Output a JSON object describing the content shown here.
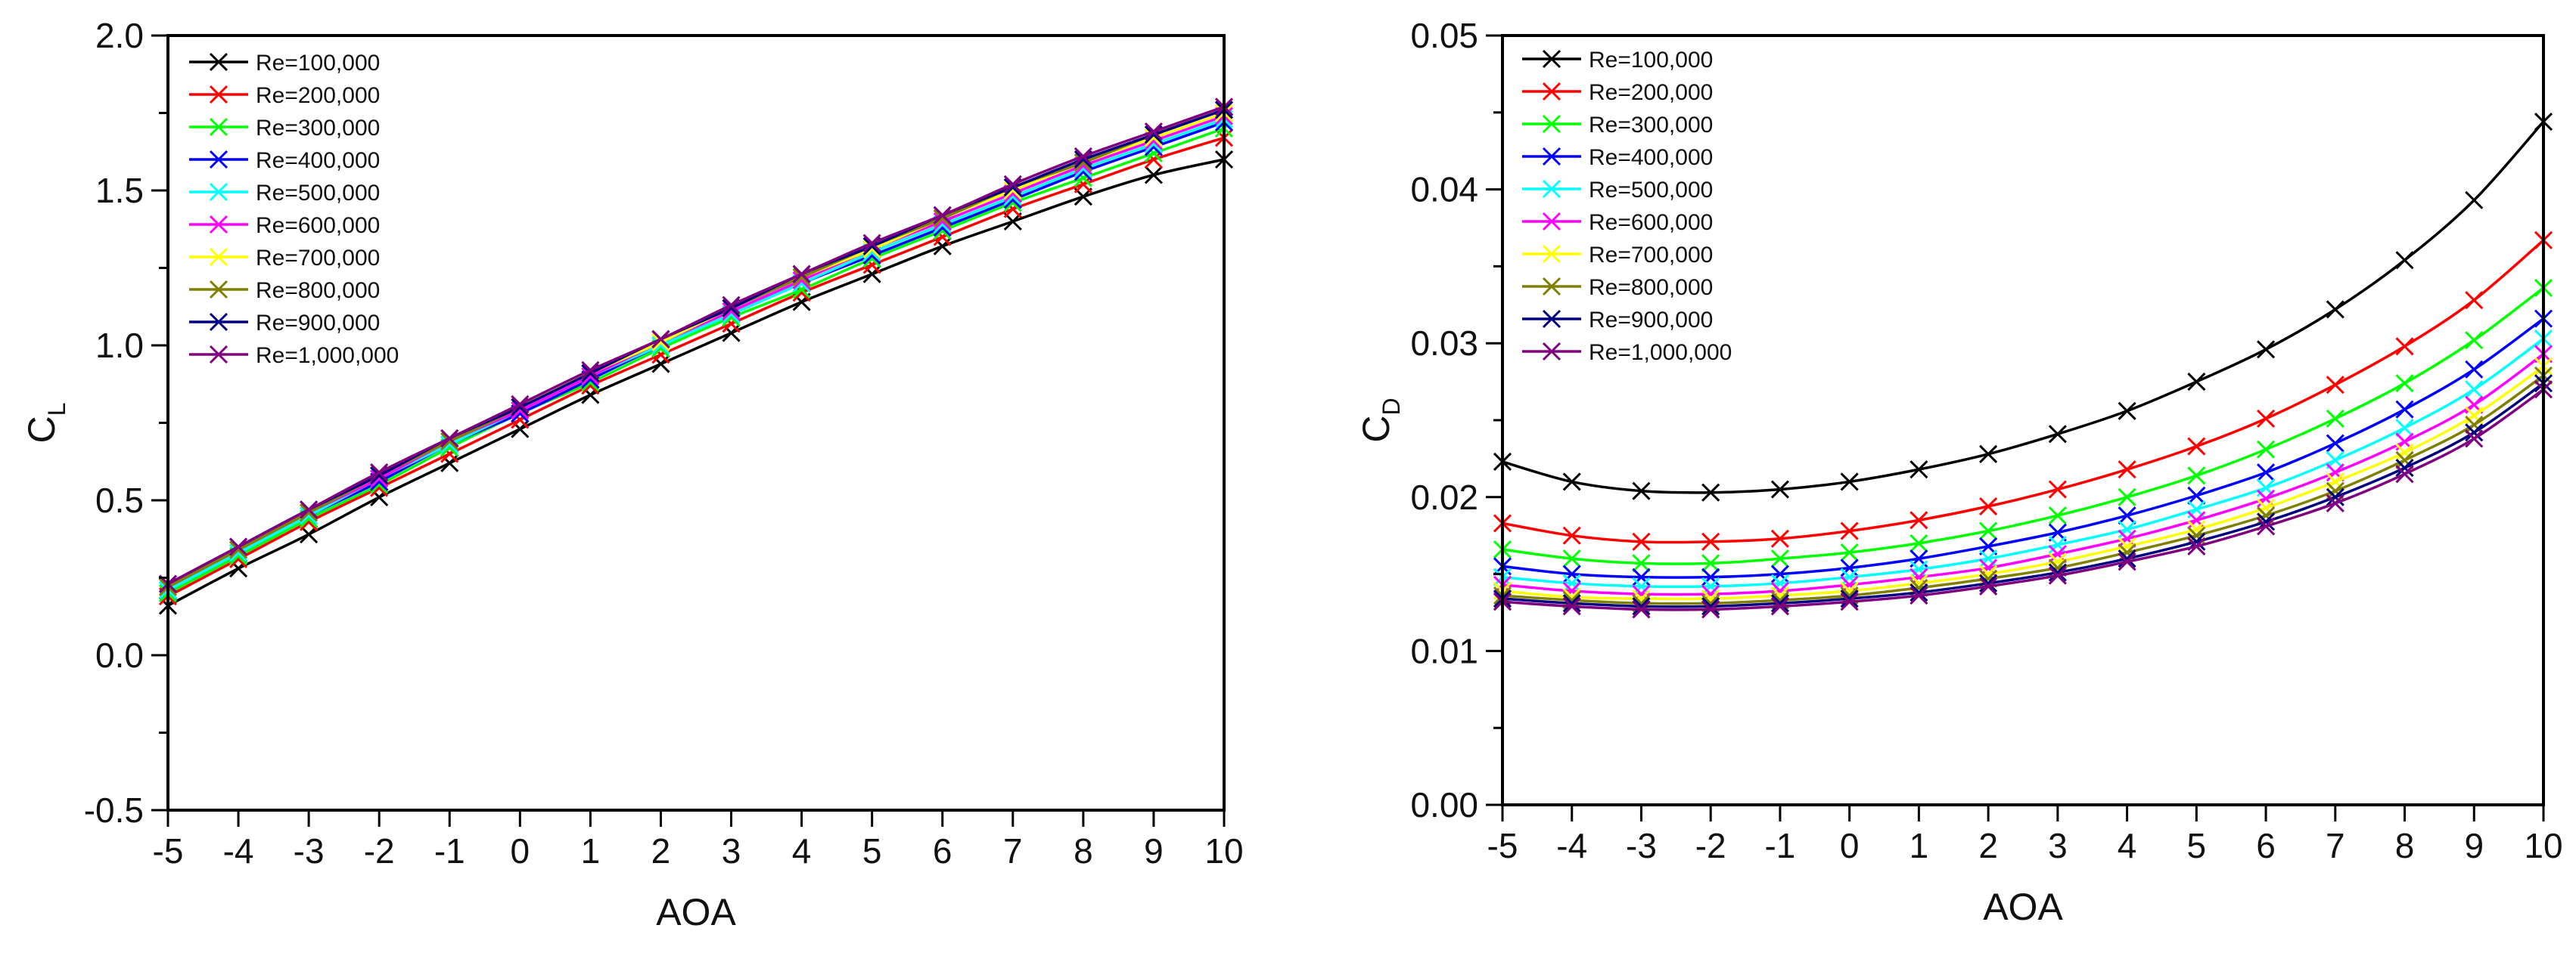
{
  "chart_data": [
    {
      "type": "line",
      "title": "",
      "xlabel": "AOA",
      "ylabel": "C",
      "ylabel_sub": "L",
      "xlim": [
        -5,
        10
      ],
      "ylim": [
        -0.5,
        2.0
      ],
      "x_ticks": [
        -5,
        -4,
        -3,
        -2,
        -1,
        0,
        1,
        2,
        3,
        4,
        5,
        6,
        7,
        8,
        9,
        10
      ],
      "x_tick_labels": [
        "-5",
        "-4",
        "-3",
        "-2",
        "-1",
        "0",
        "1",
        "2",
        "3",
        "4",
        "5",
        "6",
        "7",
        "8",
        "9",
        "10"
      ],
      "y_ticks": [
        -0.5,
        0.0,
        0.5,
        1.0,
        1.5,
        2.0
      ],
      "y_tick_labels": [
        "-0.5",
        "0.0",
        "0.5",
        "1.0",
        "1.5",
        "2.0"
      ],
      "legend_position": "top-left",
      "marker": "x",
      "x": [
        -5,
        -4,
        -3,
        -2,
        -1,
        0,
        1,
        2,
        3,
        4,
        5,
        6,
        7,
        8,
        9,
        10
      ],
      "series": [
        {
          "name": "Re=100,000",
          "color": "#000000",
          "values": [
            0.16,
            0.28,
            0.39,
            0.51,
            0.62,
            0.73,
            0.84,
            0.94,
            1.04,
            1.14,
            1.23,
            1.32,
            1.4,
            1.48,
            1.55,
            1.6
          ]
        },
        {
          "name": "Re=200,000",
          "color": "#ff0000",
          "values": [
            0.19,
            0.31,
            0.43,
            0.54,
            0.65,
            0.76,
            0.87,
            0.97,
            1.07,
            1.17,
            1.26,
            1.35,
            1.44,
            1.52,
            1.6,
            1.67
          ]
        },
        {
          "name": "Re=300,000",
          "color": "#00ff00",
          "values": [
            0.2,
            0.32,
            0.44,
            0.55,
            0.67,
            0.78,
            0.88,
            0.99,
            1.09,
            1.18,
            1.28,
            1.37,
            1.46,
            1.54,
            1.62,
            1.7
          ]
        },
        {
          "name": "Re=400,000",
          "color": "#0000ff",
          "values": [
            0.21,
            0.33,
            0.45,
            0.56,
            0.68,
            0.78,
            0.89,
            1.0,
            1.1,
            1.2,
            1.29,
            1.38,
            1.47,
            1.56,
            1.64,
            1.72
          ]
        },
        {
          "name": "Re=500,000",
          "color": "#00ffff",
          "values": [
            0.21,
            0.33,
            0.45,
            0.57,
            0.68,
            0.79,
            0.9,
            1.0,
            1.1,
            1.2,
            1.3,
            1.39,
            1.48,
            1.57,
            1.65,
            1.73
          ]
        },
        {
          "name": "Re=600,000",
          "color": "#ff00ff",
          "values": [
            0.22,
            0.34,
            0.46,
            0.57,
            0.69,
            0.79,
            0.9,
            1.01,
            1.11,
            1.21,
            1.31,
            1.4,
            1.49,
            1.58,
            1.66,
            1.74
          ]
        },
        {
          "name": "Re=700,000",
          "color": "#ffff00",
          "values": [
            0.22,
            0.34,
            0.46,
            0.58,
            0.69,
            0.8,
            0.91,
            1.01,
            1.12,
            1.22,
            1.31,
            1.41,
            1.5,
            1.59,
            1.67,
            1.75
          ]
        },
        {
          "name": "Re=800,000",
          "color": "#808000",
          "values": [
            0.22,
            0.34,
            0.46,
            0.58,
            0.69,
            0.8,
            0.91,
            1.02,
            1.12,
            1.22,
            1.32,
            1.41,
            1.51,
            1.59,
            1.68,
            1.76
          ]
        },
        {
          "name": "Re=900,000",
          "color": "#000080",
          "values": [
            0.23,
            0.35,
            0.47,
            0.58,
            0.7,
            0.8,
            0.91,
            1.02,
            1.12,
            1.23,
            1.32,
            1.42,
            1.51,
            1.6,
            1.68,
            1.76
          ]
        },
        {
          "name": "Re=1,000,000",
          "color": "#800080",
          "values": [
            0.23,
            0.35,
            0.47,
            0.59,
            0.7,
            0.81,
            0.92,
            1.02,
            1.13,
            1.23,
            1.33,
            1.42,
            1.52,
            1.61,
            1.69,
            1.77
          ]
        }
      ]
    },
    {
      "type": "line",
      "title": "",
      "xlabel": "AOA",
      "ylabel": "C",
      "ylabel_sub": "D",
      "xlim": [
        -5,
        10
      ],
      "ylim": [
        0.0,
        0.05
      ],
      "x_ticks": [
        -5,
        -4,
        -3,
        -2,
        -1,
        0,
        1,
        2,
        3,
        4,
        5,
        6,
        7,
        8,
        9,
        10
      ],
      "x_tick_labels": [
        "-5",
        "-4",
        "-3",
        "-2",
        "-1",
        "0",
        "1",
        "2",
        "3",
        "4",
        "5",
        "6",
        "7",
        "8",
        "9",
        "10"
      ],
      "y_ticks": [
        0.0,
        0.01,
        0.02,
        0.03,
        0.04,
        0.05
      ],
      "y_tick_labels": [
        "0.00",
        "0.01",
        "0.02",
        "0.03",
        "0.04",
        "0.05"
      ],
      "legend_position": "top-left",
      "marker": "x",
      "x": [
        -5,
        -4,
        -3,
        -2,
        -1,
        0,
        1,
        2,
        3,
        4,
        5,
        6,
        7,
        8,
        9,
        10
      ],
      "series": [
        {
          "name": "Re=100,000",
          "color": "#000000",
          "values": [
            0.0223,
            0.021,
            0.0204,
            0.0203,
            0.0205,
            0.021,
            0.0218,
            0.0228,
            0.0241,
            0.0256,
            0.0275,
            0.0296,
            0.0322,
            0.0354,
            0.0393,
            0.0444
          ]
        },
        {
          "name": "Re=200,000",
          "color": "#ff0000",
          "values": [
            0.0183,
            0.0175,
            0.0171,
            0.0171,
            0.0173,
            0.0178,
            0.0185,
            0.0194,
            0.0205,
            0.0218,
            0.0233,
            0.0251,
            0.0273,
            0.0298,
            0.0328,
            0.0367
          ]
        },
        {
          "name": "Re=300,000",
          "color": "#00ff00",
          "values": [
            0.0166,
            0.016,
            0.0157,
            0.0157,
            0.016,
            0.0164,
            0.017,
            0.0178,
            0.0188,
            0.02,
            0.0214,
            0.0231,
            0.0251,
            0.0274,
            0.0302,
            0.0336
          ]
        },
        {
          "name": "Re=400,000",
          "color": "#0000ff",
          "values": [
            0.0155,
            0.015,
            0.0148,
            0.0148,
            0.015,
            0.0154,
            0.016,
            0.0168,
            0.0177,
            0.0188,
            0.0201,
            0.0216,
            0.0235,
            0.0257,
            0.0283,
            0.0316
          ]
        },
        {
          "name": "Re=500,000",
          "color": "#00ffff",
          "values": [
            0.0148,
            0.0144,
            0.0142,
            0.0142,
            0.0144,
            0.0148,
            0.0153,
            0.016,
            0.0169,
            0.0179,
            0.0192,
            0.0206,
            0.0224,
            0.0245,
            0.027,
            0.0303
          ]
        },
        {
          "name": "Re=600,000",
          "color": "#ff00ff",
          "values": [
            0.0143,
            0.0139,
            0.0137,
            0.0137,
            0.0139,
            0.0143,
            0.0148,
            0.0154,
            0.0163,
            0.0173,
            0.0185,
            0.0199,
            0.0216,
            0.0236,
            0.026,
            0.0293
          ]
        },
        {
          "name": "Re=700,000",
          "color": "#ffff00",
          "values": [
            0.0139,
            0.0135,
            0.0134,
            0.0134,
            0.0136,
            0.0139,
            0.0144,
            0.015,
            0.0158,
            0.0168,
            0.0179,
            0.0193,
            0.021,
            0.0229,
            0.0253,
            0.0285
          ]
        },
        {
          "name": "Re=800,000",
          "color": "#808000",
          "values": [
            0.0136,
            0.0133,
            0.0131,
            0.0131,
            0.0133,
            0.0136,
            0.0141,
            0.0147,
            0.0154,
            0.0164,
            0.0175,
            0.0188,
            0.0204,
            0.0224,
            0.0247,
            0.0279
          ]
        },
        {
          "name": "Re=900,000",
          "color": "#000080",
          "values": [
            0.0134,
            0.0131,
            0.0129,
            0.0129,
            0.0131,
            0.0134,
            0.0138,
            0.0144,
            0.0151,
            0.016,
            0.0171,
            0.0184,
            0.02,
            0.0219,
            0.0242,
            0.0274
          ]
        },
        {
          "name": "Re=1,000,000",
          "color": "#800080",
          "values": [
            0.0132,
            0.0129,
            0.0127,
            0.0127,
            0.0129,
            0.0132,
            0.0136,
            0.0142,
            0.0149,
            0.0158,
            0.0168,
            0.0181,
            0.0196,
            0.0215,
            0.0238,
            0.027
          ]
        }
      ]
    }
  ]
}
